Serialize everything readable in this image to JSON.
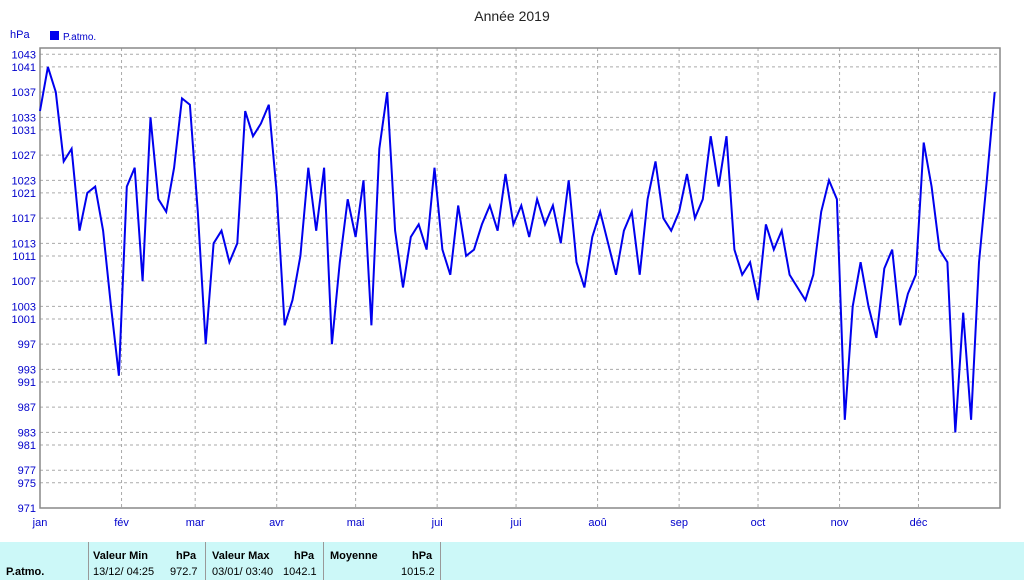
{
  "chart_data": {
    "type": "line",
    "title": "Année 2019",
    "y_label": "hPa",
    "xlim": [
      0,
      365
    ],
    "xticks": [
      {
        "value": 0,
        "label": "jan"
      },
      {
        "value": 31,
        "label": "fév"
      },
      {
        "value": 59,
        "label": "mar"
      },
      {
        "value": 90,
        "label": "avr"
      },
      {
        "value": 120,
        "label": "mai"
      },
      {
        "value": 151,
        "label": "jui"
      },
      {
        "value": 181,
        "label": "jui"
      },
      {
        "value": 212,
        "label": "aoû"
      },
      {
        "value": 243,
        "label": "sep"
      },
      {
        "value": 273,
        "label": "oct"
      },
      {
        "value": 304,
        "label": "nov"
      },
      {
        "value": 334,
        "label": "déc"
      }
    ],
    "ylim": [
      971,
      1044
    ],
    "yticks": [
      971,
      975,
      977,
      981,
      983,
      987,
      991,
      993,
      997,
      1001,
      1003,
      1007,
      1011,
      1013,
      1017,
      1021,
      1023,
      1027,
      1031,
      1033,
      1037,
      1041,
      1043
    ],
    "grid": true,
    "legend": "top-left",
    "x": [
      0,
      3,
      6,
      9,
      12,
      15,
      18,
      21,
      24,
      27,
      30,
      33,
      36,
      39,
      42,
      45,
      48,
      51,
      54,
      57,
      60,
      63,
      66,
      69,
      72,
      75,
      78,
      81,
      84,
      87,
      90,
      93,
      96,
      99,
      102,
      105,
      108,
      111,
      114,
      117,
      120,
      123,
      126,
      129,
      132,
      135,
      138,
      141,
      144,
      147,
      150,
      153,
      156,
      159,
      162,
      165,
      168,
      171,
      174,
      177,
      180,
      183,
      186,
      189,
      192,
      195,
      198,
      201,
      204,
      207,
      210,
      213,
      216,
      219,
      222,
      225,
      228,
      231,
      234,
      237,
      240,
      243,
      246,
      249,
      252,
      255,
      258,
      261,
      264,
      267,
      270,
      273,
      276,
      279,
      282,
      285,
      288,
      291,
      294,
      297,
      300,
      303,
      306,
      309,
      312,
      315,
      318,
      321,
      324,
      327,
      330,
      333,
      336,
      339,
      342,
      345,
      348,
      351,
      354,
      357,
      360,
      363
    ],
    "series": [
      {
        "name": "P.atmo.",
        "color": "#0000ee",
        "values": [
          1034,
          1041,
          1037,
          1026,
          1028,
          1015,
          1021,
          1022,
          1015,
          1003,
          992,
          1022,
          1025,
          1007,
          1033,
          1020,
          1018,
          1025,
          1036,
          1035,
          1018,
          997,
          1013,
          1015,
          1010,
          1013,
          1034,
          1030,
          1032,
          1035,
          1021,
          1000,
          1004,
          1011,
          1025,
          1015,
          1025,
          997,
          1010,
          1020,
          1014,
          1023,
          1000,
          1028,
          1037,
          1015,
          1006,
          1014,
          1016,
          1012,
          1025,
          1012,
          1008,
          1019,
          1011,
          1012,
          1016,
          1019,
          1015,
          1024,
          1016,
          1019,
          1014,
          1020,
          1016,
          1019,
          1013,
          1023,
          1010,
          1006,
          1014,
          1018,
          1013,
          1008,
          1015,
          1018,
          1008,
          1020,
          1026,
          1017,
          1015,
          1018,
          1024,
          1017,
          1020,
          1030,
          1022,
          1030,
          1012,
          1008,
          1010,
          1004,
          1016,
          1012,
          1015,
          1008,
          1006,
          1004,
          1008,
          1018,
          1023,
          1020,
          985,
          1003,
          1010,
          1003,
          998,
          1009,
          1012,
          1000,
          1005,
          1008,
          1029,
          1022,
          1012,
          1010,
          983,
          1002,
          985,
          1010,
          1023,
          1037
        ]
      }
    ]
  },
  "stats": {
    "row_label": "P.atmo.",
    "min": {
      "title": "Valeur Min",
      "unit": "hPa",
      "date": "13/12/ 04:25",
      "value": "972.7"
    },
    "max": {
      "title": "Valeur Max",
      "unit": "hPa",
      "date": "03/01/ 03:40",
      "value": "1042.1"
    },
    "mean": {
      "title": "Moyenne",
      "unit": "hPa",
      "value": "1015.2"
    }
  }
}
